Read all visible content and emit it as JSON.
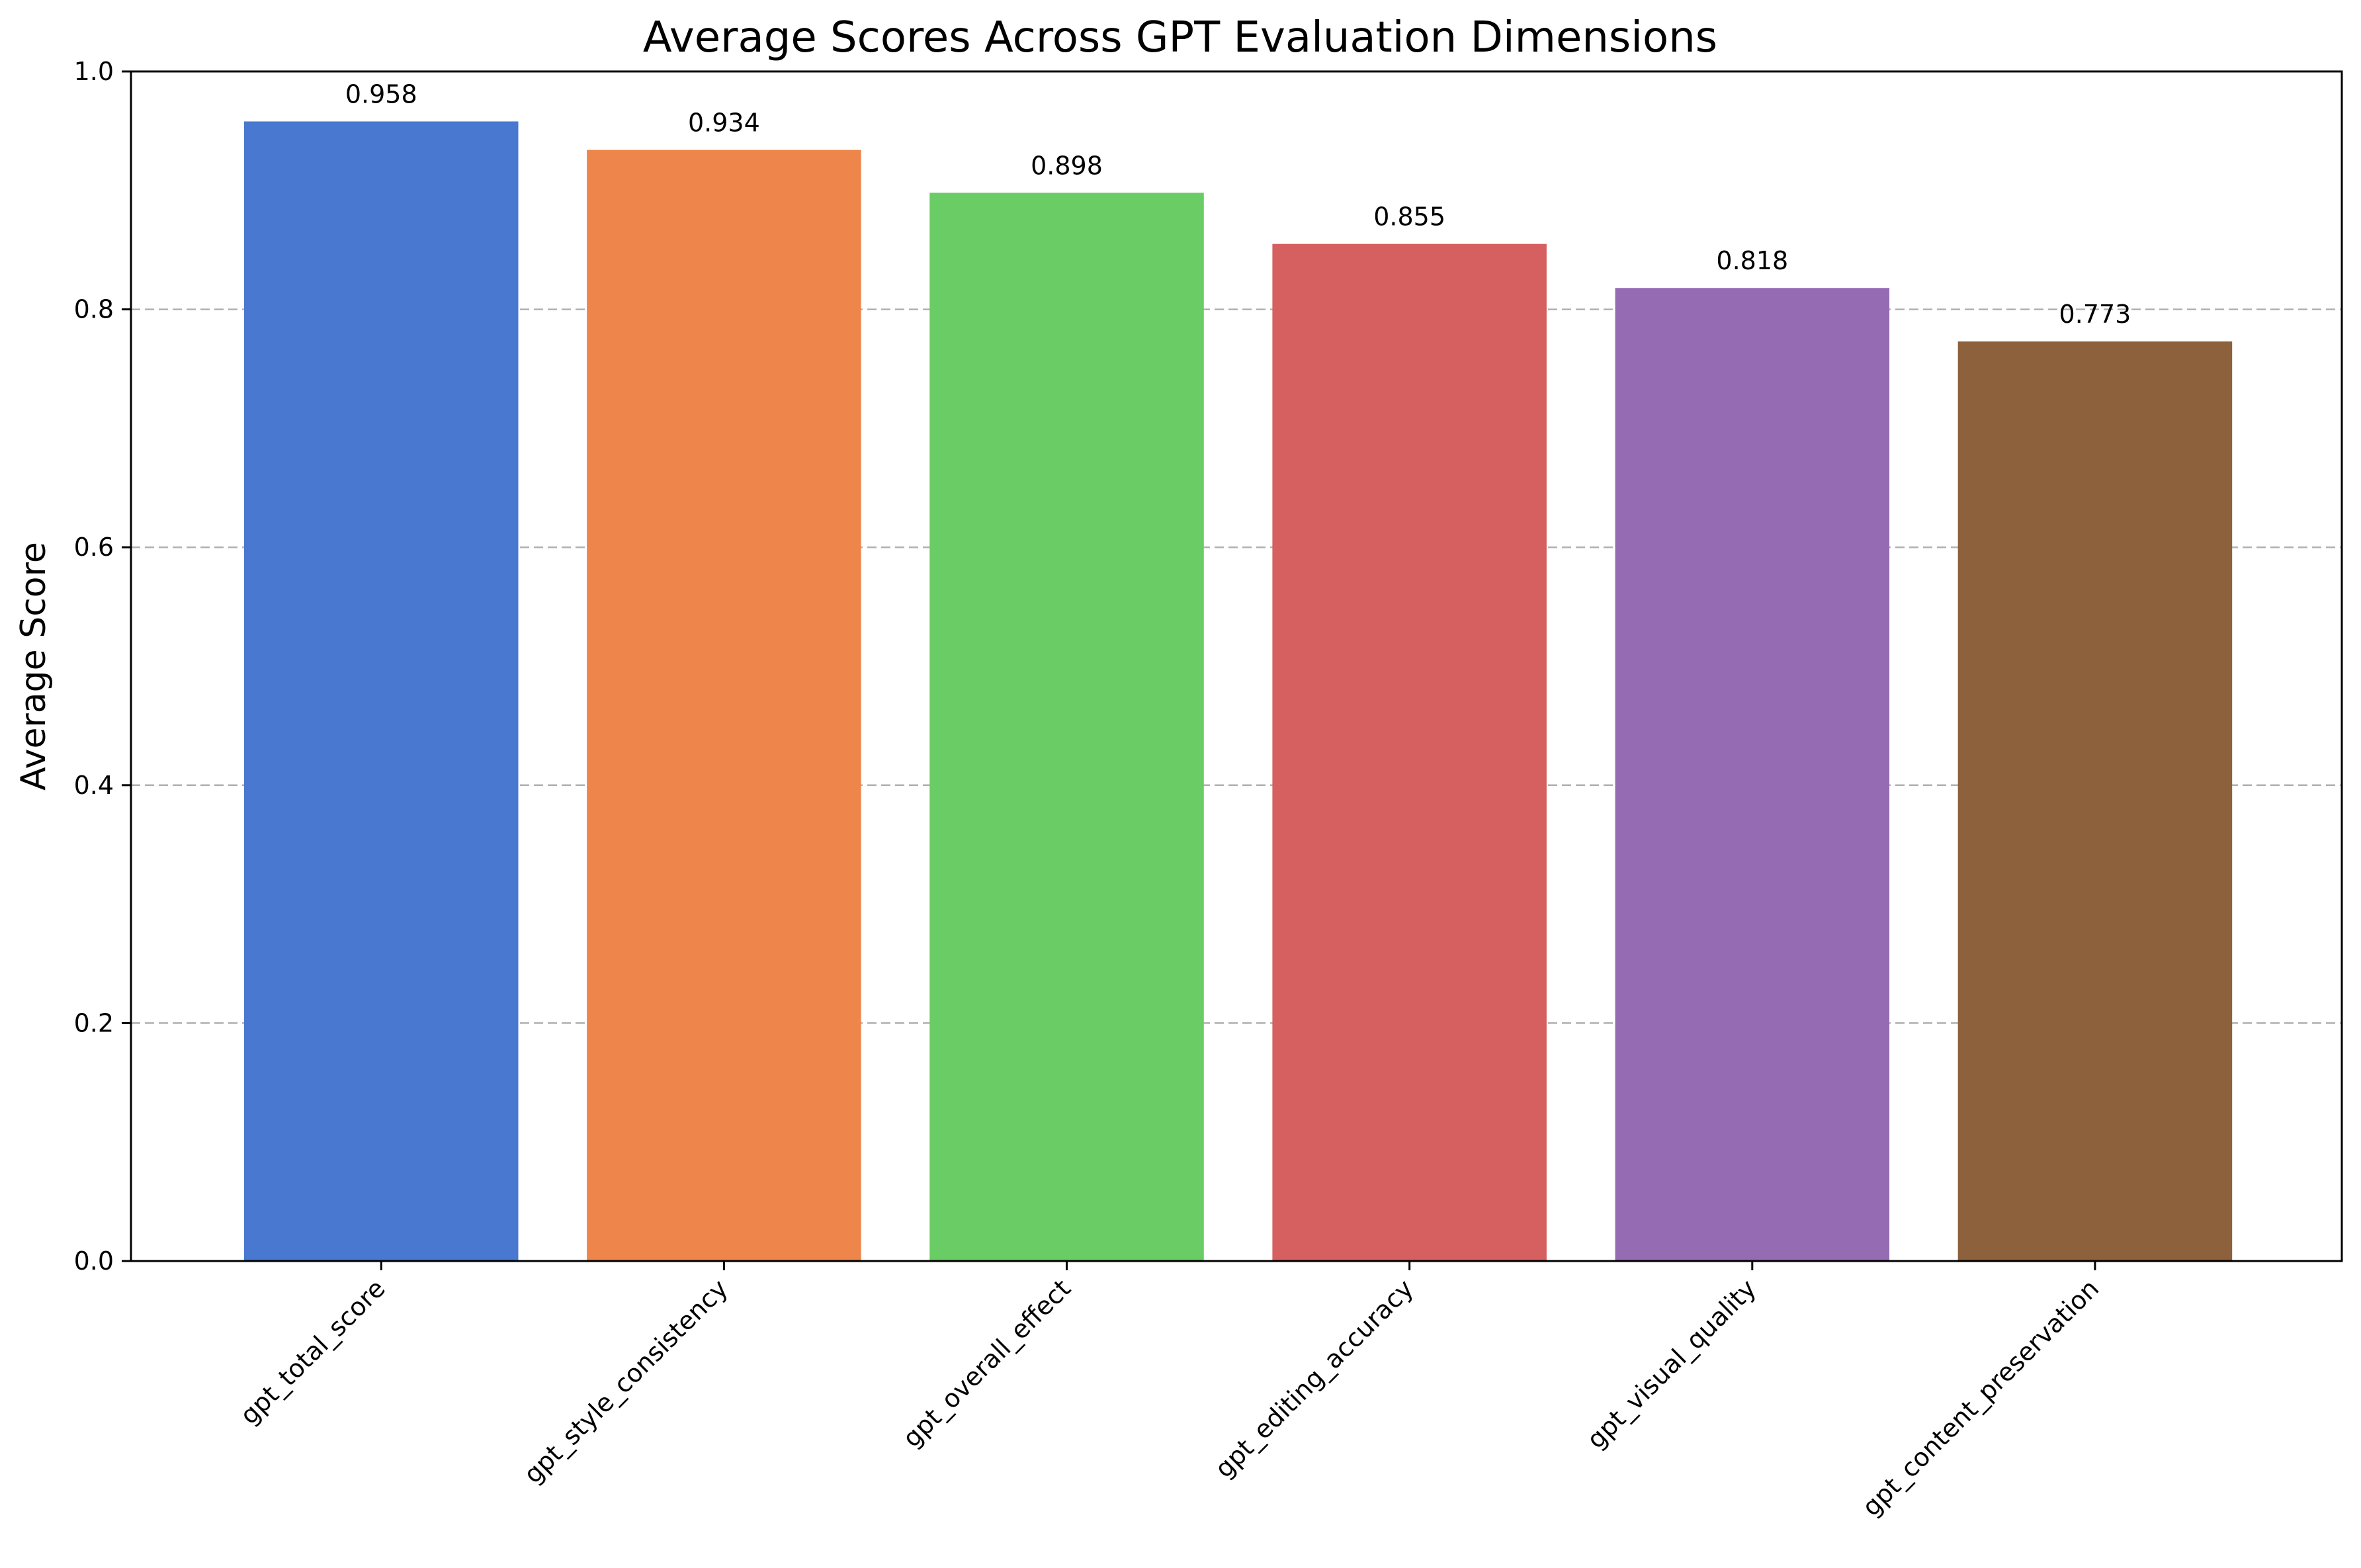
{
  "chart_data": {
    "type": "bar",
    "title": "Average Scores Across GPT Evaluation Dimensions",
    "xlabel": "",
    "ylabel": "Average Score",
    "ylim": [
      0,
      1.0
    ],
    "yticks": [
      "0.0",
      "0.2",
      "0.4",
      "0.6",
      "0.8",
      "1.0"
    ],
    "grid": "y-dashed",
    "categories": [
      "gpt_total_score",
      "gpt_style_consistency",
      "gpt_overall_effect",
      "gpt_editing_accuracy",
      "gpt_visual_quality",
      "gpt_content_preservation"
    ],
    "values": [
      0.958,
      0.934,
      0.898,
      0.855,
      0.818,
      0.773
    ],
    "value_labels": [
      "0.958",
      "0.934",
      "0.898",
      "0.855",
      "0.818",
      "0.773"
    ],
    "colors": [
      "#4878cf",
      "#ee854a",
      "#6acc64",
      "#d65f5f",
      "#956cb4",
      "#8c613c"
    ]
  }
}
